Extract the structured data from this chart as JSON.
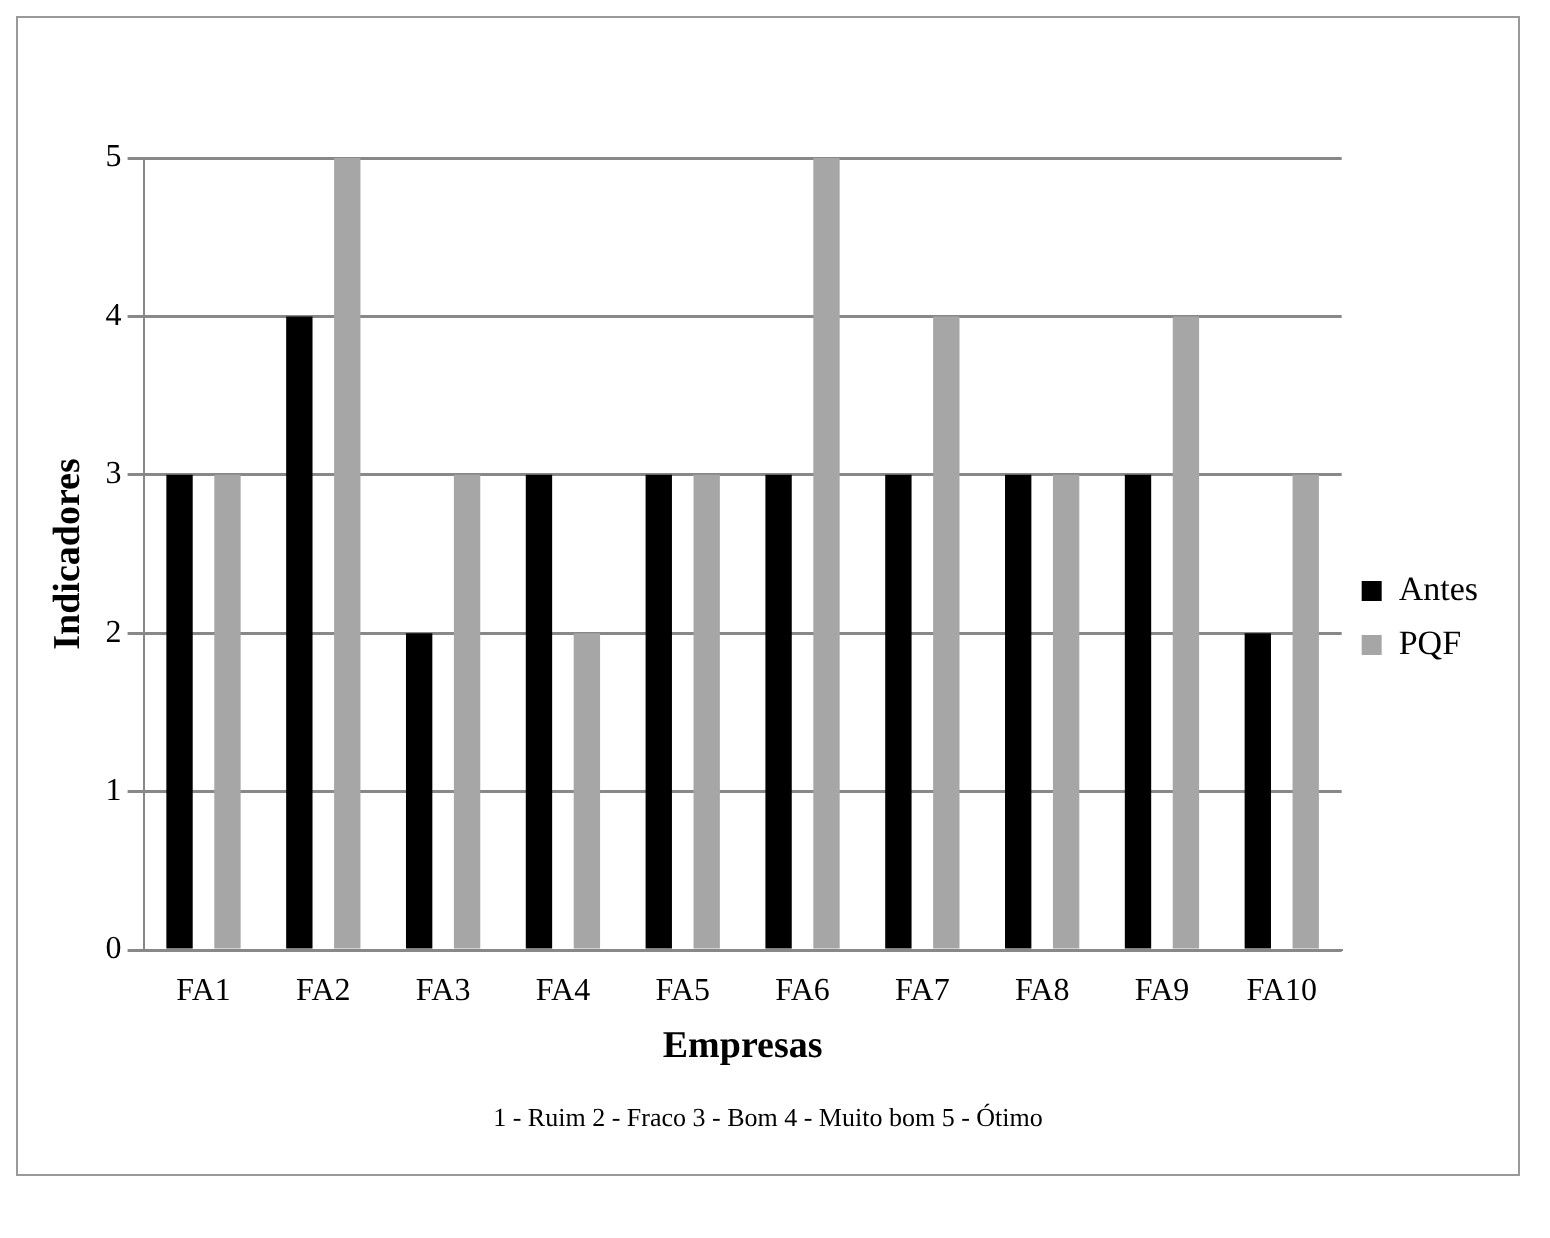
{
  "chart_data": {
    "type": "bar",
    "xlabel": "Empresas",
    "ylabel": "Indicadores",
    "categories": [
      "FA1",
      "FA2",
      "FA3",
      "FA4",
      "FA5",
      "FA6",
      "FA7",
      "FA8",
      "FA9",
      "FA10"
    ],
    "series": [
      {
        "name": "Antes",
        "color": "#000000",
        "values": [
          3,
          4,
          2,
          3,
          3,
          3,
          3,
          3,
          3,
          2
        ]
      },
      {
        "name": "PQF",
        "color": "#a6a6a6",
        "values": [
          3,
          5,
          3,
          2,
          3,
          5,
          4,
          3,
          4,
          3
        ]
      }
    ],
    "ylim": [
      0,
      5
    ],
    "yticks": [
      0,
      1,
      2,
      3,
      4,
      5
    ],
    "grid": "y",
    "legend": "right",
    "annotations": [
      "1 - Ruim 2 - Fraco 3 - Bom 4 - Muito bom 5 - Ótimo"
    ]
  }
}
